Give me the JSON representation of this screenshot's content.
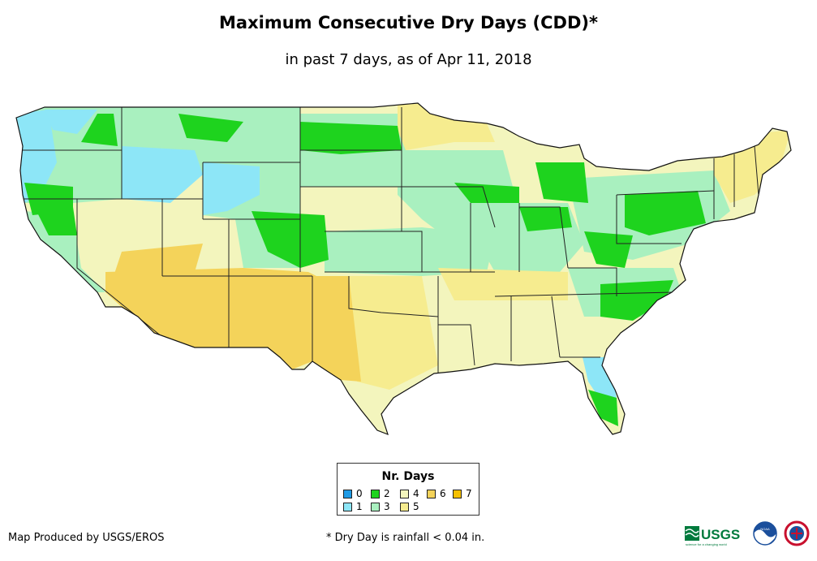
{
  "header": {
    "title": "Maximum Consecutive Dry Days (CDD)*",
    "subtitle": "in past 7 days, as of Apr 11, 2018"
  },
  "legend": {
    "title": "Nr. Days",
    "items": [
      {
        "label": "0",
        "color": "#1f9be6"
      },
      {
        "label": "1",
        "color": "#8de6f7"
      },
      {
        "label": "2",
        "color": "#1ed31e"
      },
      {
        "label": "3",
        "color": "#a9f0bf"
      },
      {
        "label": "4",
        "color": "#f3f5bd"
      },
      {
        "label": "5",
        "color": "#f6ec8f"
      },
      {
        "label": "6",
        "color": "#f4d35a"
      },
      {
        "label": "7",
        "color": "#f5c000"
      }
    ]
  },
  "footer": {
    "credit": "Map Produced by USGS/EROS",
    "note": "* Dry Day is rainfall < 0.04 in."
  },
  "logos": {
    "usgs": "USGS",
    "usgs_tagline": "science for a changing world",
    "noaa": "NOAA"
  }
}
